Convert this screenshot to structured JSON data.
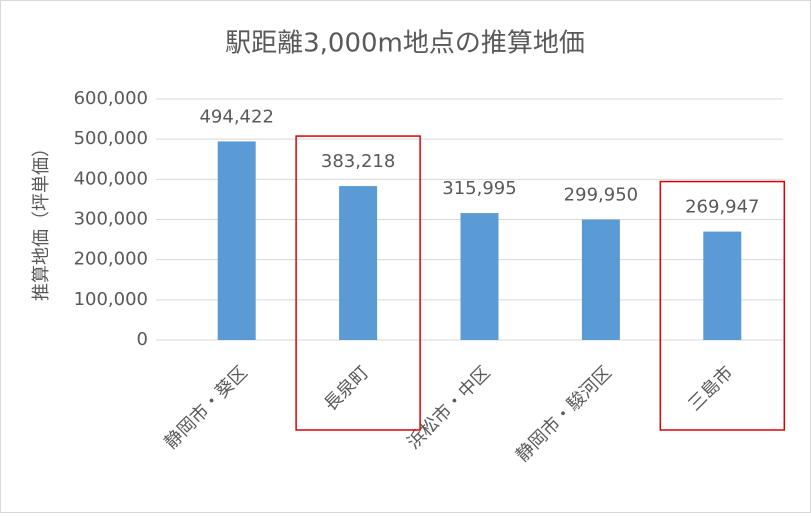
{
  "chart_data": {
    "type": "bar",
    "title": "駅距離3,000m地点の推算地価",
    "y_label": "推算地価（坪単価）",
    "categories": [
      "静岡市・葵区",
      "長泉町",
      "浜松市・中区",
      "静岡市・駿河区",
      "三島市"
    ],
    "values": [
      494422,
      383218,
      315995,
      299950,
      269947
    ],
    "value_labels": [
      "494,422",
      "383,218",
      "315,995",
      "299,950",
      "269,947"
    ],
    "color": "#5b9bd5",
    "ylim": [
      0,
      600000
    ],
    "yticks": [
      0,
      {
        "value": 100000,
        "label": "100,000"
      },
      {
        "value": 200000,
        "label": "200,000"
      },
      {
        "value": 300000,
        "label": "300,000"
      },
      {
        "value": 400000,
        "label": "400,000"
      },
      {
        "value": 500000,
        "label": "500,000"
      },
      {
        "value": 600000,
        "label": "600,000"
      }
    ],
    "grid": true,
    "highlight": [
      1,
      4
    ],
    "highlight_color": "#e00000"
  }
}
